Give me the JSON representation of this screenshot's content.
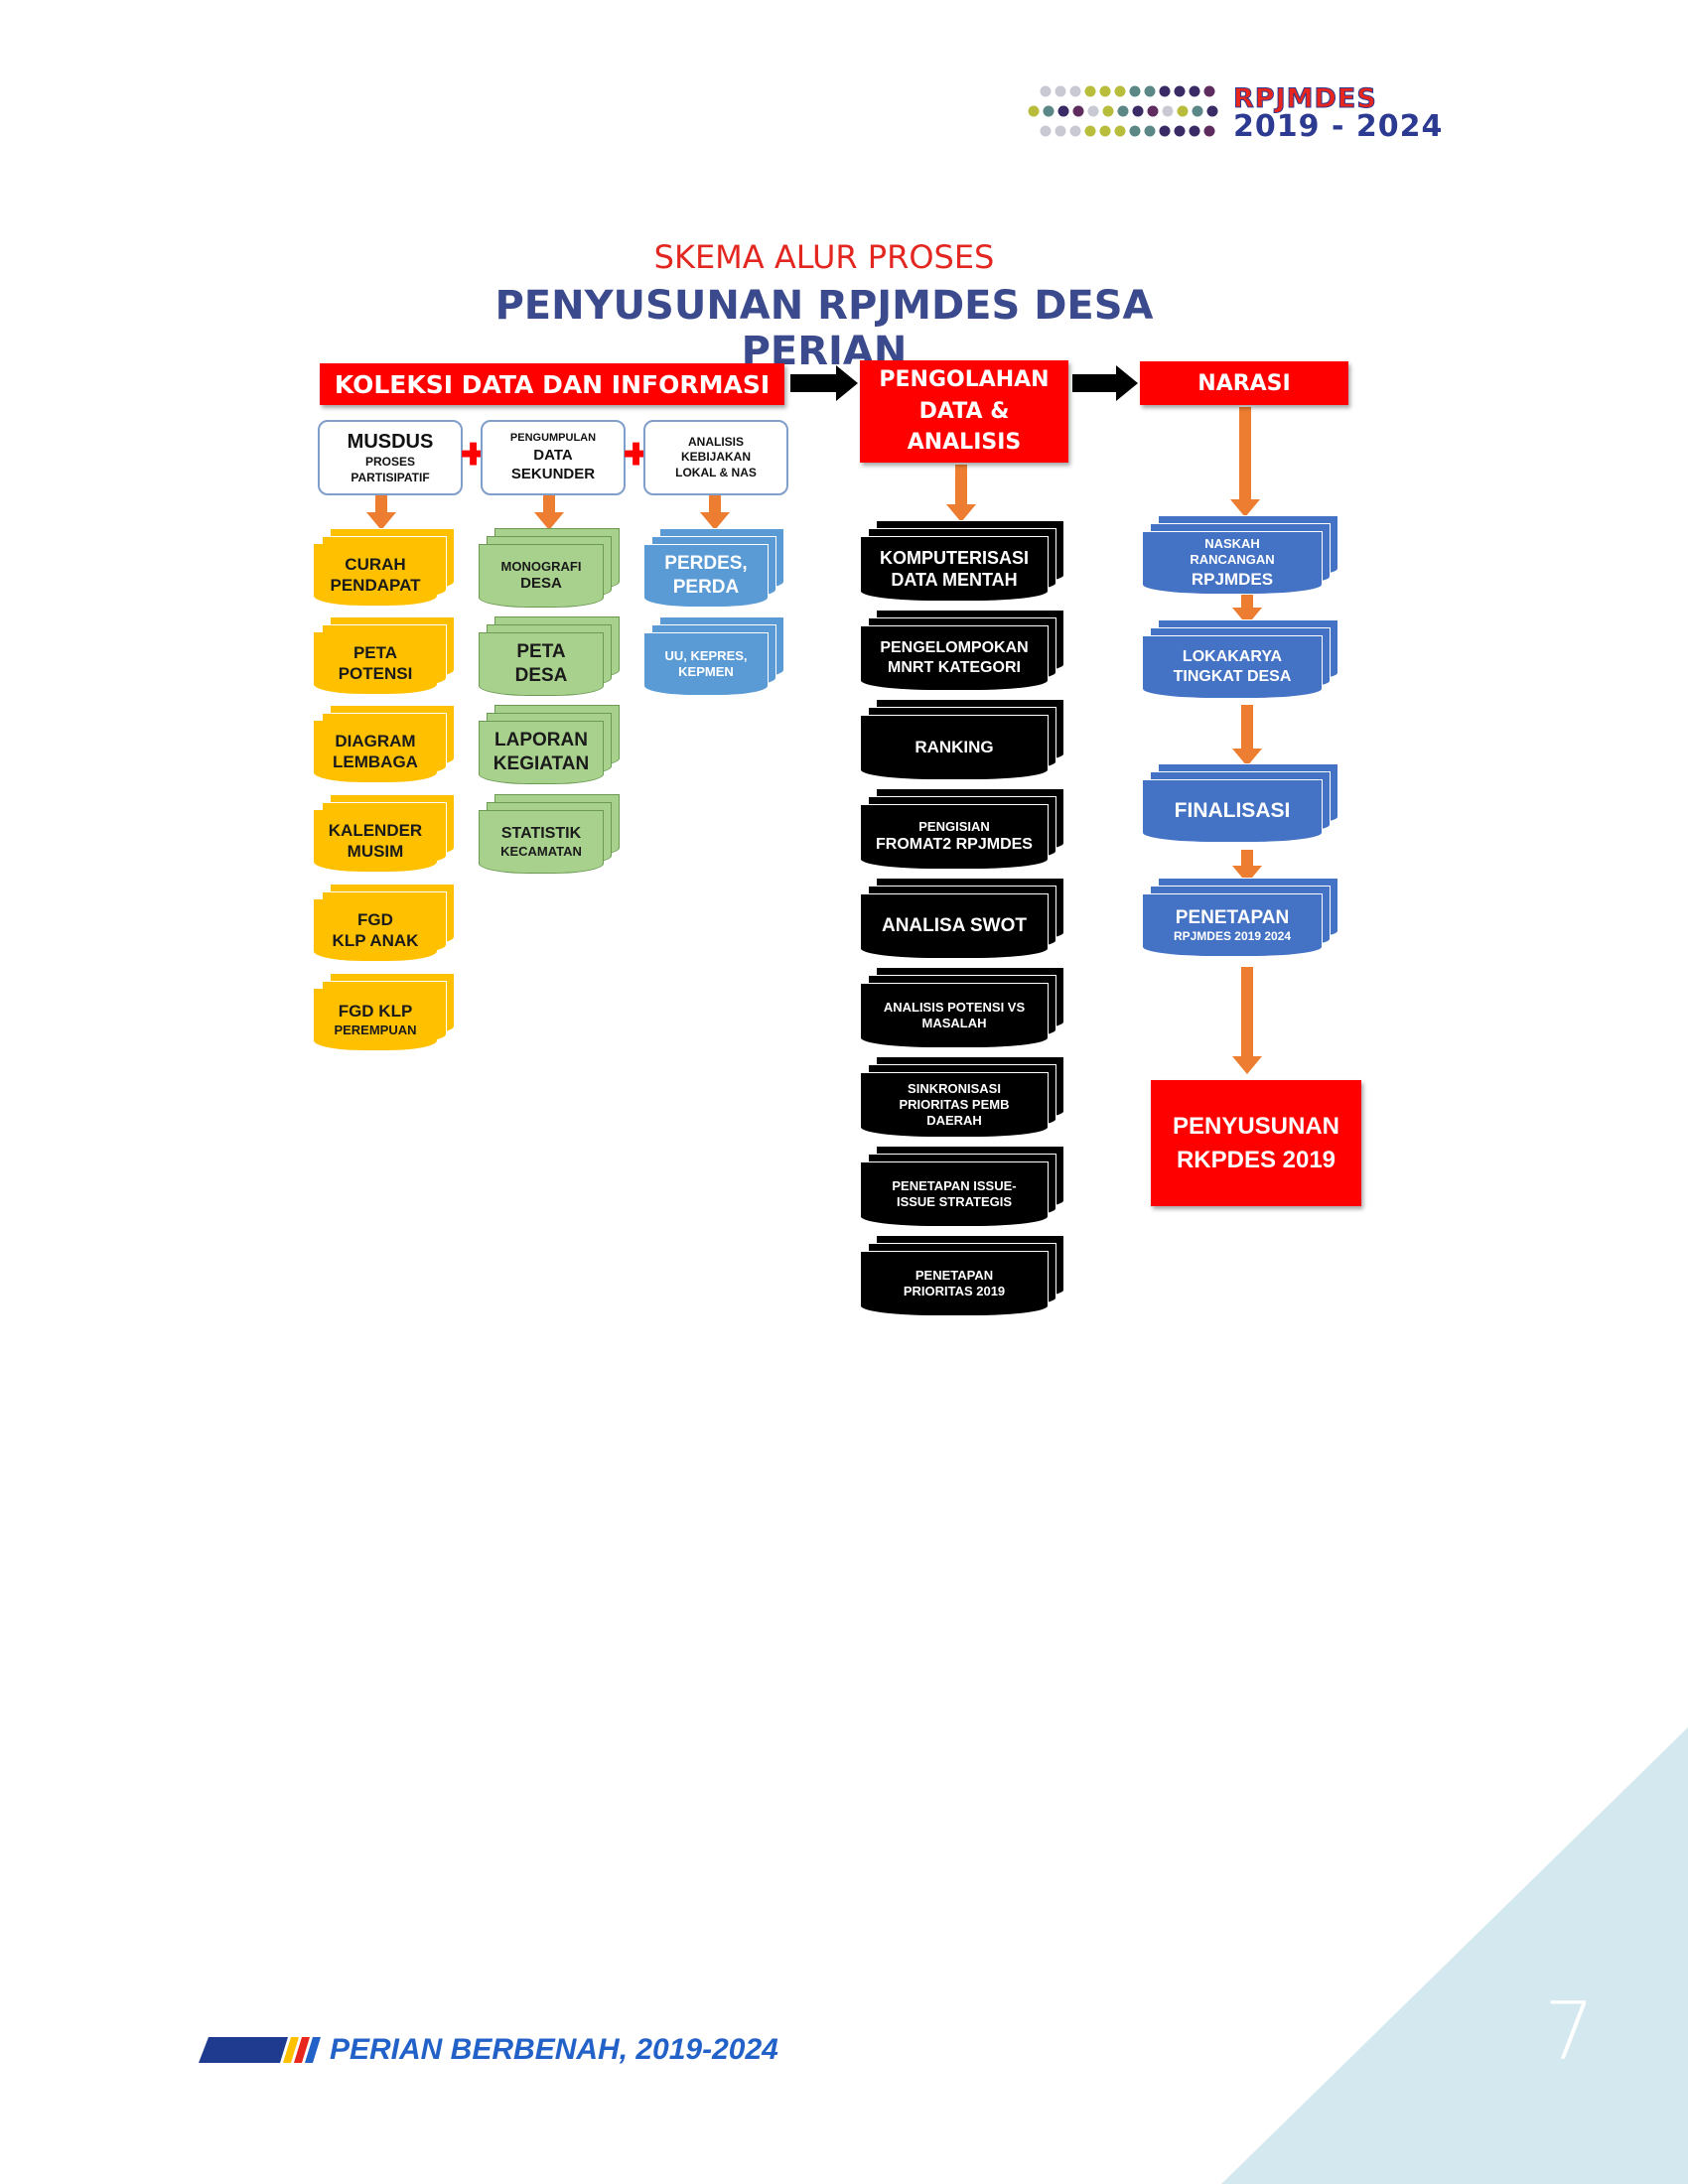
{
  "header_logo": {
    "line1": "RPJMDES",
    "line2": "2019 - 2024"
  },
  "titles": {
    "subtitle": "SKEMA ALUR PROSES",
    "title": "PENYUSUNAN RPJMDES DESA PERIAN"
  },
  "columns": {
    "koleksi": {
      "label": "KOLEKSI DATA DAN INFORMASI"
    },
    "pengolahan": {
      "line1": "PENGOLAHAN",
      "line2": "DATA &",
      "line3": "ANALISIS"
    },
    "narasi": {
      "label": "NARASI"
    }
  },
  "sources": {
    "musdus": {
      "title": "MUSDUS",
      "line2": "PROSES",
      "line3": "PARTISIPATIF"
    },
    "sekunder": {
      "line1": "PENGUMPULAN",
      "line2": "DATA",
      "line3": "SEKUNDER"
    },
    "kebijakan": {
      "line1": "ANALISIS",
      "line2": "KEBIJAKAN",
      "line3": "LOKAL & NAS"
    }
  },
  "musdus_items": [
    {
      "line1": "CURAH",
      "line2": "PENDAPAT"
    },
    {
      "line1": "PETA",
      "line2": "POTENSI"
    },
    {
      "line1": "DIAGRAM",
      "line2": "LEMBAGA"
    },
    {
      "line1": "KALENDER",
      "line2": "MUSIM"
    },
    {
      "line1": "FGD",
      "line2": "KLP ANAK"
    },
    {
      "line1": "FGD KLP",
      "line2": "PEREMPUAN"
    }
  ],
  "sekunder_items": [
    {
      "line1": "MONOGRAFI",
      "line2": "DESA"
    },
    {
      "line1": "PETA",
      "line2": "DESA"
    },
    {
      "line1": "LAPORAN",
      "line2": "KEGIATAN"
    },
    {
      "line1": "STATISTIK",
      "line2": "KECAMATAN"
    }
  ],
  "kebijakan_items": [
    {
      "line1": "PERDES,",
      "line2": "PERDA"
    },
    {
      "line1": "UU, KEPRES,",
      "line2": "KEPMEN"
    }
  ],
  "pengolahan_items": [
    {
      "line1": "KOMPUTERISASI",
      "line2": "DATA MENTAH",
      "line3": ""
    },
    {
      "line1": "PENGELOMPOKAN",
      "line2": "MNRT KATEGORI",
      "line3": ""
    },
    {
      "line1": "RANKING",
      "line2": "",
      "line3": ""
    },
    {
      "line1": "PENGISIAN",
      "line2": "FROMAT2  RPJMDES",
      "line3": ""
    },
    {
      "line1": "ANALISA SWOT",
      "line2": "",
      "line3": ""
    },
    {
      "line1": "ANALISIS  POTENSI  VS",
      "line2": "MASALAH",
      "line3": ""
    },
    {
      "line1": "SINKRONISASI",
      "line2": "PRIORITAS   PEMB",
      "line3": "DAERAH"
    },
    {
      "line1": "PENETAPAN  ISSUE-",
      "line2": "ISSUE  STRATEGIS",
      "line3": ""
    },
    {
      "line1": "PENETAPAN",
      "line2": "PRIORITAS   2019",
      "line3": ""
    }
  ],
  "narasi_items": [
    {
      "line1": "NASKAH",
      "line2": "RANCANGAN",
      "line3": "RPJMDES"
    },
    {
      "line1": "LOKAKARYA",
      "line2": "TINGKAT DESA",
      "line3": ""
    },
    {
      "line1": "FINALISASI",
      "line2": "",
      "line3": ""
    },
    {
      "line1": "PENETAPAN",
      "line2": "RPJMDES 2019 2024",
      "line3": ""
    }
  ],
  "final_box": {
    "line1": "PENYUSUNAN",
    "line2": "RKPDES 2019"
  },
  "footer": {
    "text": "PERIAN BERBENAH, 2019-2024"
  },
  "page_number": "7",
  "colors": {
    "red": "#ff0000",
    "yellow": "#ffc000",
    "green": "#a9d18e",
    "blue": "#5b9bd5",
    "dark_blue": "#4472c4",
    "black": "#000000",
    "arrow_orange": "#ed7d31",
    "corner_teal": "#d3e9ef"
  }
}
